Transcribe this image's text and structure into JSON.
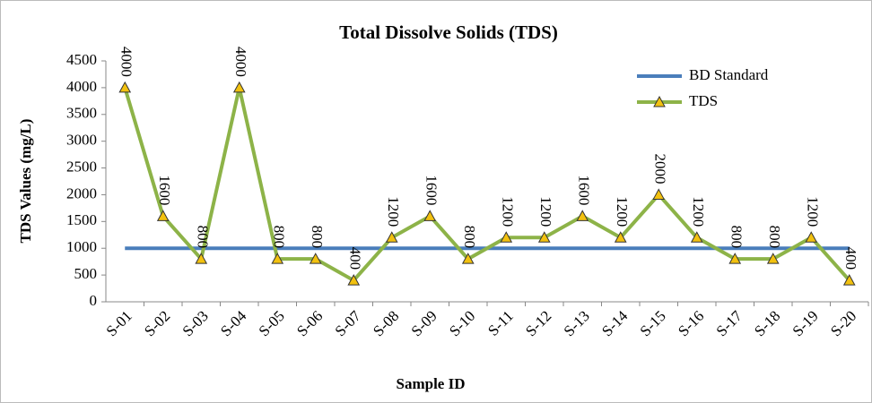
{
  "chart_data": {
    "type": "line",
    "title": "Total Dissolve Solids (TDS)",
    "xlabel": "Sample ID",
    "ylabel": "TDS Values (mg/L)",
    "categories": [
      "S-01",
      "S-02",
      "S-03",
      "S-04",
      "S-05",
      "S-06",
      "S-07",
      "S-08",
      "S-09",
      "S-10",
      "S-11",
      "S-12",
      "S-13",
      "S-14",
      "S-15",
      "S-16",
      "S-17",
      "S-18",
      "S-19",
      "S-20"
    ],
    "series": [
      {
        "name": "BD Standard",
        "color": "#4a7ebb",
        "values": [
          1000,
          1000,
          1000,
          1000,
          1000,
          1000,
          1000,
          1000,
          1000,
          1000,
          1000,
          1000,
          1000,
          1000,
          1000,
          1000,
          1000,
          1000,
          1000,
          1000
        ]
      },
      {
        "name": "TDS",
        "color": "#8db348",
        "marker": "triangle",
        "marker_color": "#f2c10f",
        "data_labels": true,
        "values": [
          4000,
          1600,
          800,
          4000,
          800,
          800,
          400,
          1200,
          1600,
          800,
          1200,
          1200,
          1600,
          1200,
          2000,
          1200,
          800,
          800,
          1200,
          400
        ]
      }
    ],
    "ylim": [
      0,
      4500
    ],
    "yticks": [
      0,
      500,
      1000,
      1500,
      2000,
      2500,
      3000,
      3500,
      4000,
      4500
    ],
    "legend": "upper right"
  }
}
